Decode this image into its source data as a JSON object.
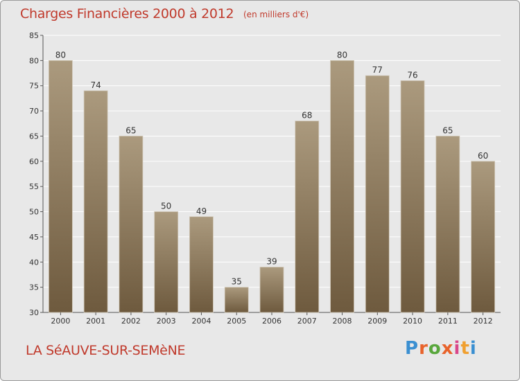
{
  "title": "Charges Financières 2000 à 2012",
  "subtitle": "(en milliers d'€)",
  "place": "LA SéAUVE-SUR-SEMèNE",
  "logo": {
    "letters": [
      "P",
      "r",
      "o",
      "x",
      "i",
      "t",
      "i"
    ],
    "colors": [
      "#3a8fd1",
      "#e8632b",
      "#58a73c",
      "#e8632b",
      "#d9478a",
      "#f0a030",
      "#3a8fd1"
    ]
  },
  "colors": {
    "bar_top": "#ab9a7e",
    "bar_bottom": "#6e5a3e",
    "text_red": "#c0392b",
    "grid": "#ffffff",
    "plot_bg": "#e8e8e8"
  },
  "chart_data": {
    "type": "bar",
    "categories": [
      "2000",
      "2001",
      "2002",
      "2003",
      "2004",
      "2005",
      "2006",
      "2007",
      "2008",
      "2009",
      "2010",
      "2011",
      "2012"
    ],
    "values": [
      80,
      74,
      65,
      50,
      49,
      35,
      39,
      68,
      80,
      77,
      76,
      65,
      60
    ],
    "ylim": [
      30,
      85
    ],
    "yticks": [
      30,
      35,
      40,
      45,
      50,
      55,
      60,
      65,
      70,
      75,
      80,
      85
    ],
    "grid": true,
    "xlabel": "",
    "ylabel": ""
  }
}
